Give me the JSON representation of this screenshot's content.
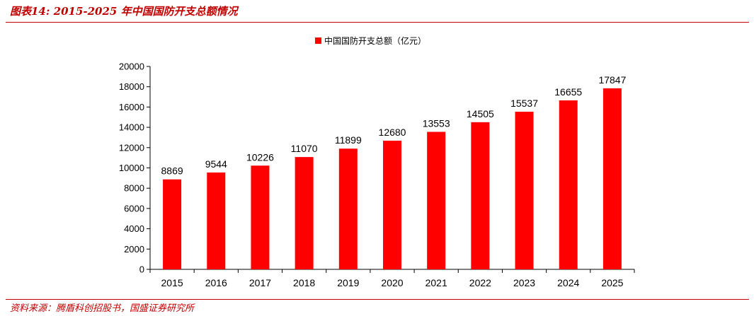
{
  "header": {
    "figure_title": "图表14:  2015-2025 年中国国防开支总额情况"
  },
  "footer": {
    "source": "资料来源：腾盾科创招股书，国盛证券研究所"
  },
  "chart_data": {
    "type": "bar",
    "categories": [
      "2015",
      "2016",
      "2017",
      "2018",
      "2019",
      "2020",
      "2021",
      "2022",
      "2023",
      "2024",
      "2025"
    ],
    "series": [
      {
        "name": "中国国防开支总额（亿元）",
        "values": [
          8869,
          9544,
          10226,
          11070,
          11899,
          12680,
          13553,
          14505,
          15537,
          16655,
          17847
        ],
        "color": "#ff0000"
      }
    ],
    "title": "",
    "xlabel": "",
    "ylabel": "",
    "ylim": [
      0,
      20000
    ],
    "yticks": [
      0,
      2000,
      4000,
      6000,
      8000,
      10000,
      12000,
      14000,
      16000,
      18000,
      20000
    ],
    "legend": {
      "placement": "top-center",
      "label": "中国国防开支总额（亿元）"
    },
    "data_labels": true,
    "grid": false
  }
}
